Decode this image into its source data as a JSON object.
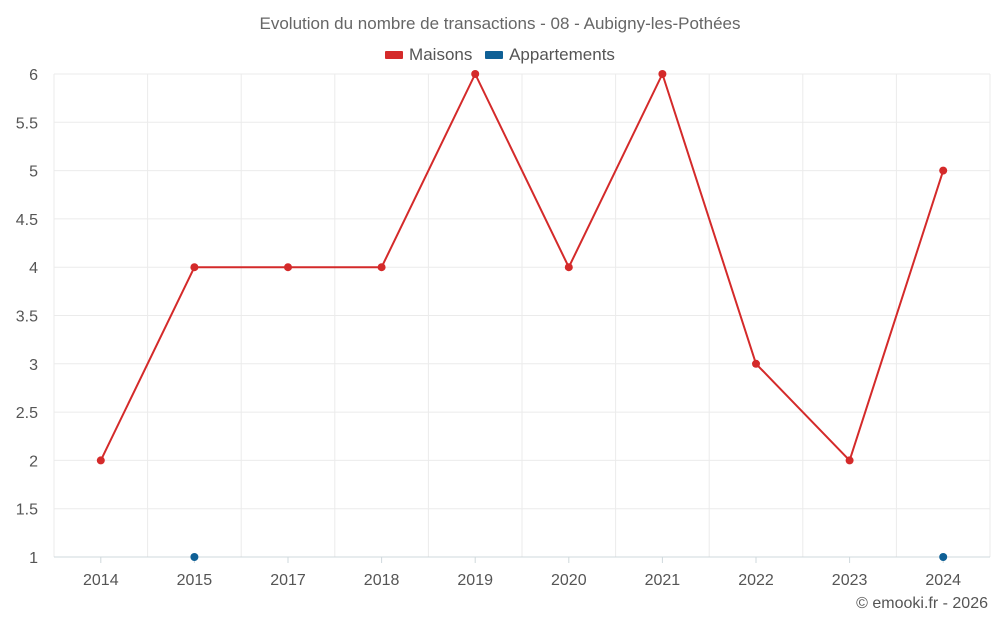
{
  "chart_data": {
    "type": "line",
    "title": "Evolution du nombre de transactions - 08 - Aubigny-les-Pothées",
    "categories": [
      "2014",
      "2015",
      "2017",
      "2018",
      "2019",
      "2020",
      "2021",
      "2022",
      "2023",
      "2024"
    ],
    "series": [
      {
        "name": "Maisons",
        "color": "#d42a2a",
        "values": [
          2,
          4,
          4,
          4,
          6,
          4,
          6,
          3,
          2,
          5
        ]
      },
      {
        "name": "Appartements",
        "color": "#0f6096",
        "values": [
          null,
          1,
          null,
          null,
          null,
          null,
          null,
          null,
          null,
          1
        ]
      }
    ],
    "ylim": [
      1,
      6
    ],
    "yticks": [
      "1",
      "1.5",
      "2",
      "2.5",
      "3",
      "3.5",
      "4",
      "4.5",
      "5",
      "5.5",
      "6"
    ],
    "legend_position": "top-center",
    "grid": true
  },
  "footer": {
    "copyright": "© emooki.fr - 2026"
  }
}
